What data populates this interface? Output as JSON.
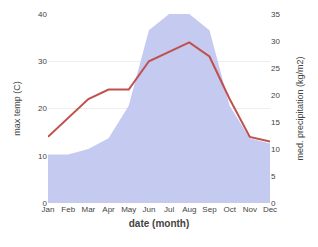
{
  "chart_data": {
    "type": "line",
    "xlabel": "date (month)",
    "ylabel": "max temp (C)",
    "y2label": "med. precipitation (kg/m2)",
    "categories": [
      "Jan",
      "Feb",
      "Mar",
      "Apr",
      "May",
      "Jun",
      "Jul",
      "Aug",
      "Sep",
      "Oct",
      "Nov",
      "Dec"
    ],
    "series": [
      {
        "type": "area",
        "axis": "y2",
        "color": "#c5caf0",
        "values": [
          9,
          9,
          10,
          12,
          18,
          32,
          35,
          35,
          32,
          18,
          12,
          11
        ]
      },
      {
        "type": "line",
        "color": "#c0504d",
        "values": [
          14,
          18,
          22,
          24,
          24,
          30,
          32,
          34,
          31,
          22,
          14,
          13
        ]
      }
    ],
    "ylim": [
      0,
      40
    ],
    "yticks": [
      0,
      10,
      20,
      30,
      40
    ],
    "y2lim": [
      0,
      35
    ],
    "y2ticks": [
      0,
      5,
      10,
      15,
      20,
      25,
      30,
      35
    ],
    "grid": true
  }
}
